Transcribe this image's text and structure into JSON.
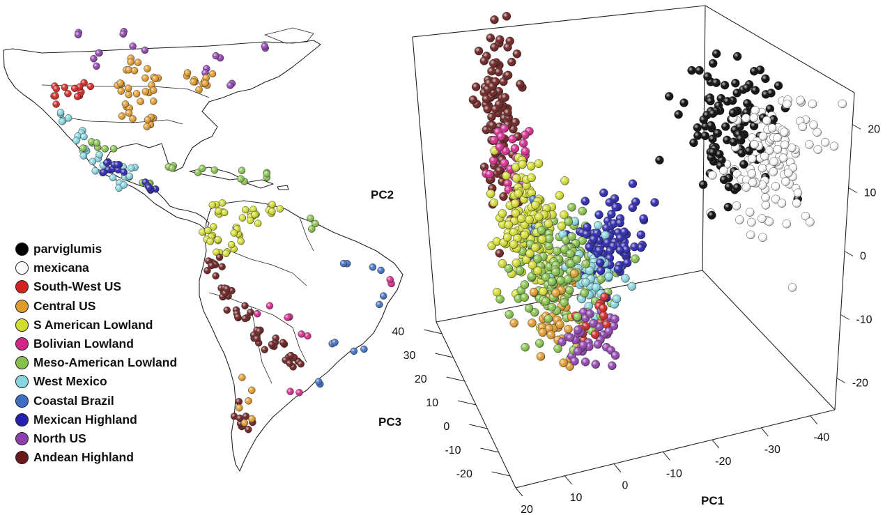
{
  "legend": {
    "items": [
      {
        "label": "parviglumis",
        "color": "#000000"
      },
      {
        "label": "mexicana",
        "color": "#ffffff"
      },
      {
        "label": "South-West US",
        "color": "#d2221f"
      },
      {
        "label": "Central US",
        "color": "#e29a2a"
      },
      {
        "label": "S American Lowland",
        "color": "#d3dd2e"
      },
      {
        "label": "Bolivian Lowland",
        "color": "#d4268a"
      },
      {
        "label": "Meso-American Lowland",
        "color": "#86c24a"
      },
      {
        "label": "West Mexico",
        "color": "#86d6e0"
      },
      {
        "label": "Coastal Brazil",
        "color": "#3d6ec4"
      },
      {
        "label": "Mexican Highland",
        "color": "#2520b0"
      },
      {
        "label": "North US",
        "color": "#8e3fae"
      },
      {
        "label": "Andean Highland",
        "color": "#6b1a1a"
      }
    ]
  },
  "map": {
    "description_icon": "americas-map"
  },
  "chart_data": {
    "type": "scatter",
    "title": "",
    "axes": {
      "x": {
        "label": "PC1",
        "ticks": [
          -40,
          -30,
          -20,
          -10,
          0,
          10,
          20
        ],
        "range": [
          -45,
          25
        ]
      },
      "y": {
        "label": "PC2",
        "ticks": [
          -20,
          -10,
          0,
          10,
          20
        ],
        "range": [
          -25,
          25
        ]
      },
      "z": {
        "label": "PC3",
        "ticks": [
          -20,
          -10,
          0,
          10,
          20,
          30,
          40
        ],
        "range": [
          -25,
          45
        ]
      }
    },
    "series": [
      {
        "name": "parviglumis",
        "color": "#000000",
        "centroid": [
          -32,
          12,
          5
        ],
        "spread": [
          5,
          5,
          5
        ],
        "count": 110
      },
      {
        "name": "mexicana",
        "color": "#ffffff",
        "centroid": [
          -38,
          8,
          -2
        ],
        "spread": [
          5,
          5,
          4
        ],
        "count": 120
      },
      {
        "name": "Andean Highland",
        "color": "#6b1a1a",
        "centroid": [
          10,
          12,
          32
        ],
        "spread": [
          2,
          8,
          3
        ],
        "count": 110
      },
      {
        "name": "Bolivian Lowland",
        "color": "#d4268a",
        "centroid": [
          10,
          6,
          26
        ],
        "spread": [
          2,
          3,
          2
        ],
        "count": 25
      },
      {
        "name": "S American Lowland",
        "color": "#d3dd2e",
        "centroid": [
          8,
          0,
          15
        ],
        "spread": [
          3,
          5,
          5
        ],
        "count": 140
      },
      {
        "name": "Meso-American Lowland",
        "color": "#86c24a",
        "centroid": [
          4,
          -6,
          6
        ],
        "spread": [
          4,
          4,
          4
        ],
        "count": 150
      },
      {
        "name": "West Mexico",
        "color": "#86d6e0",
        "centroid": [
          -2,
          -7,
          4
        ],
        "spread": [
          3,
          3,
          3
        ],
        "count": 60
      },
      {
        "name": "Mexican Highland",
        "color": "#2520b0",
        "centroid": [
          -6,
          -1,
          4
        ],
        "spread": [
          3,
          3,
          3
        ],
        "count": 80
      },
      {
        "name": "Coastal Brazil",
        "color": "#3d6ec4",
        "centroid": [
          6,
          -3,
          12
        ],
        "spread": [
          2,
          3,
          3
        ],
        "count": 10
      },
      {
        "name": "Central US",
        "color": "#e29a2a",
        "centroid": [
          4,
          -12,
          3
        ],
        "spread": [
          3,
          3,
          3
        ],
        "count": 45
      },
      {
        "name": "South-West US",
        "color": "#d2221f",
        "centroid": [
          -2,
          -10,
          -2
        ],
        "spread": [
          2,
          2,
          2
        ],
        "count": 15
      },
      {
        "name": "North US",
        "color": "#8e3fae",
        "centroid": [
          0,
          -14,
          -2
        ],
        "spread": [
          3,
          2,
          2
        ],
        "count": 40
      }
    ]
  }
}
